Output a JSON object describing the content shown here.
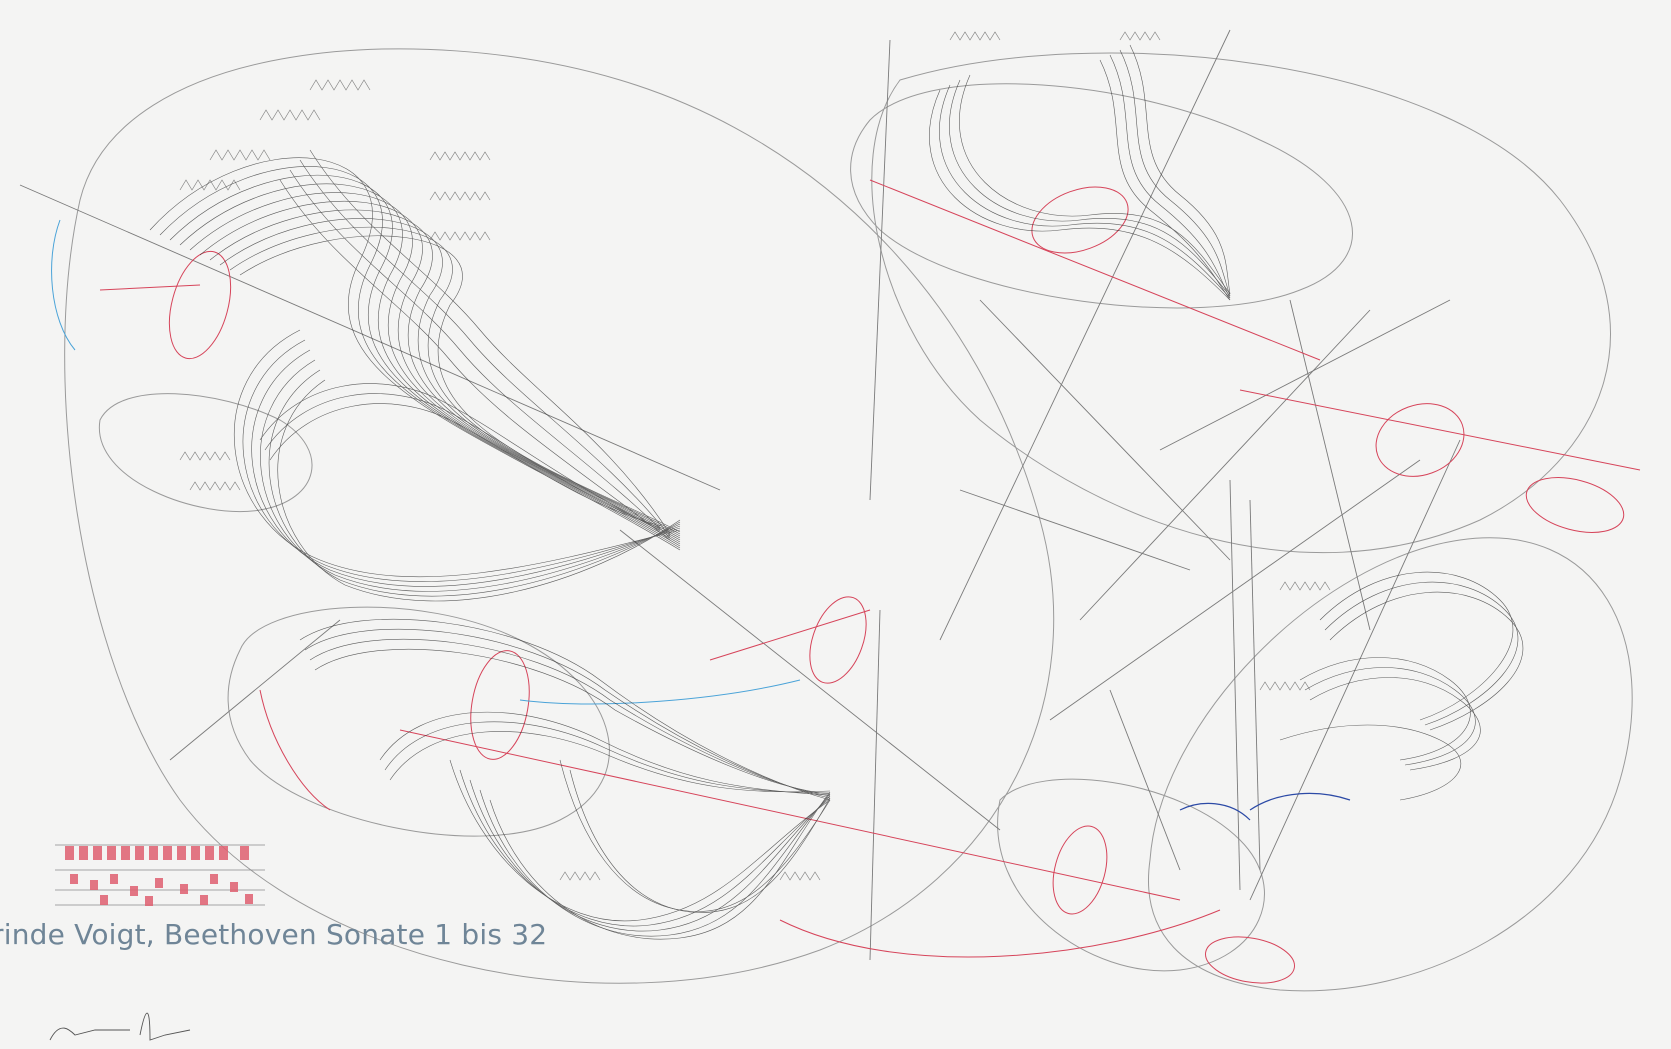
{
  "caption": "rinde Voigt, Beethoven Sonate 1 bis 32",
  "colors": {
    "background": "#f4f4f3",
    "ink": "#222222",
    "line_grey": "#8a8a8a",
    "red": "#d6445a",
    "blue": "#4aa3d8",
    "dark_blue": "#2c4aa6",
    "caption": "#6f8597",
    "legend_block": "#e06070"
  },
  "artwork": {
    "name": "line-drawing-score",
    "has_handwritten_annotations": true
  }
}
